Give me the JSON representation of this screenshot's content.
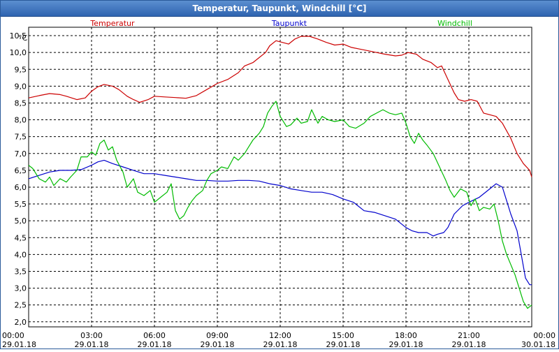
{
  "title": "Temperatur, Taupunkt, Windchill [°C]",
  "chart_data": {
    "type": "line",
    "unit": "°C",
    "y_ticks": [
      "2,0",
      "2,5",
      "3,0",
      "3,5",
      "4,0",
      "4,5",
      "5,0",
      "5,5",
      "6,0",
      "6,5",
      "7,0",
      "7,5",
      "8,0",
      "8,5",
      "9,0",
      "9,5",
      "10,0",
      "10,5"
    ],
    "ylim": [
      1.85,
      10.75
    ],
    "xlim": [
      0,
      24
    ],
    "x_ticks": [
      {
        "hour": 0,
        "time": "00:00",
        "date": "29.01.18"
      },
      {
        "hour": 3,
        "time": "03:00",
        "date": "29.01.18"
      },
      {
        "hour": 6,
        "time": "06:00",
        "date": "29.01.18"
      },
      {
        "hour": 9,
        "time": "09:00",
        "date": "29.01.18"
      },
      {
        "hour": 12,
        "time": "12:00",
        "date": "29.01.18"
      },
      {
        "hour": 15,
        "time": "15:00",
        "date": "29.01.18"
      },
      {
        "hour": 18,
        "time": "18:00",
        "date": "29.01.18"
      },
      {
        "hour": 21,
        "time": "21:00",
        "date": "29.01.18"
      },
      {
        "hour": 24,
        "time": "00:00",
        "date": "30.01.18"
      }
    ],
    "grid": true,
    "series": [
      {
        "name": "Temperatur",
        "color": "#cc0000",
        "points": [
          [
            0,
            8.65
          ],
          [
            0.5,
            8.72
          ],
          [
            1.0,
            8.78
          ],
          [
            1.5,
            8.75
          ],
          [
            1.8,
            8.7
          ],
          [
            2.3,
            8.6
          ],
          [
            2.7,
            8.65
          ],
          [
            3.0,
            8.85
          ],
          [
            3.3,
            8.98
          ],
          [
            3.6,
            9.05
          ],
          [
            4.0,
            9.0
          ],
          [
            4.3,
            8.9
          ],
          [
            4.7,
            8.7
          ],
          [
            5.0,
            8.6
          ],
          [
            5.3,
            8.52
          ],
          [
            5.7,
            8.6
          ],
          [
            6.0,
            8.7
          ],
          [
            6.5,
            8.68
          ],
          [
            7.0,
            8.66
          ],
          [
            7.5,
            8.64
          ],
          [
            8.0,
            8.72
          ],
          [
            8.5,
            8.9
          ],
          [
            9.0,
            9.08
          ],
          [
            9.5,
            9.2
          ],
          [
            10.0,
            9.4
          ],
          [
            10.3,
            9.6
          ],
          [
            10.7,
            9.7
          ],
          [
            11.0,
            9.85
          ],
          [
            11.3,
            10.0
          ],
          [
            11.5,
            10.2
          ],
          [
            11.8,
            10.35
          ],
          [
            12.1,
            10.3
          ],
          [
            12.4,
            10.25
          ],
          [
            12.7,
            10.4
          ],
          [
            13.0,
            10.48
          ],
          [
            13.4,
            10.48
          ],
          [
            13.8,
            10.4
          ],
          [
            14.2,
            10.3
          ],
          [
            14.6,
            10.22
          ],
          [
            15.0,
            10.25
          ],
          [
            15.4,
            10.15
          ],
          [
            15.8,
            10.1
          ],
          [
            16.2,
            10.05
          ],
          [
            16.6,
            10.0
          ],
          [
            17.0,
            9.95
          ],
          [
            17.5,
            9.9
          ],
          [
            17.8,
            9.92
          ],
          [
            18.1,
            10.0
          ],
          [
            18.5,
            9.95
          ],
          [
            18.8,
            9.8
          ],
          [
            19.2,
            9.7
          ],
          [
            19.5,
            9.55
          ],
          [
            19.7,
            9.6
          ],
          [
            20.0,
            9.2
          ],
          [
            20.3,
            8.8
          ],
          [
            20.5,
            8.6
          ],
          [
            20.8,
            8.55
          ],
          [
            21.1,
            8.6
          ],
          [
            21.4,
            8.55
          ],
          [
            21.7,
            8.2
          ],
          [
            22.0,
            8.15
          ],
          [
            22.3,
            8.1
          ],
          [
            22.6,
            7.9
          ],
          [
            23.0,
            7.45
          ],
          [
            23.3,
            7.0
          ],
          [
            23.6,
            6.7
          ],
          [
            23.9,
            6.5
          ],
          [
            24.0,
            6.3
          ]
        ]
      },
      {
        "name": "Taupunkt",
        "color": "#0000cc",
        "points": [
          [
            0,
            6.25
          ],
          [
            0.5,
            6.35
          ],
          [
            1.0,
            6.45
          ],
          [
            1.5,
            6.5
          ],
          [
            2.0,
            6.5
          ],
          [
            2.5,
            6.52
          ],
          [
            3.0,
            6.65
          ],
          [
            3.3,
            6.75
          ],
          [
            3.6,
            6.8
          ],
          [
            4.0,
            6.7
          ],
          [
            4.5,
            6.6
          ],
          [
            5.0,
            6.5
          ],
          [
            5.5,
            6.4
          ],
          [
            6.0,
            6.4
          ],
          [
            6.5,
            6.35
          ],
          [
            7.0,
            6.3
          ],
          [
            7.5,
            6.25
          ],
          [
            8.0,
            6.2
          ],
          [
            8.5,
            6.2
          ],
          [
            9.0,
            6.18
          ],
          [
            9.5,
            6.18
          ],
          [
            10.0,
            6.2
          ],
          [
            10.5,
            6.2
          ],
          [
            11.0,
            6.18
          ],
          [
            11.5,
            6.1
          ],
          [
            12.0,
            6.05
          ],
          [
            12.5,
            5.95
          ],
          [
            13.0,
            5.9
          ],
          [
            13.5,
            5.85
          ],
          [
            14.0,
            5.85
          ],
          [
            14.5,
            5.78
          ],
          [
            15.0,
            5.65
          ],
          [
            15.5,
            5.55
          ],
          [
            16.0,
            5.3
          ],
          [
            16.5,
            5.25
          ],
          [
            17.0,
            5.15
          ],
          [
            17.5,
            5.05
          ],
          [
            18.0,
            4.8
          ],
          [
            18.3,
            4.7
          ],
          [
            18.6,
            4.65
          ],
          [
            19.0,
            4.65
          ],
          [
            19.3,
            4.55
          ],
          [
            19.5,
            4.6
          ],
          [
            19.8,
            4.65
          ],
          [
            20.0,
            4.8
          ],
          [
            20.3,
            5.2
          ],
          [
            20.7,
            5.45
          ],
          [
            21.0,
            5.55
          ],
          [
            21.5,
            5.7
          ],
          [
            22.0,
            5.95
          ],
          [
            22.3,
            6.1
          ],
          [
            22.6,
            6.0
          ],
          [
            22.8,
            5.6
          ],
          [
            23.0,
            5.2
          ],
          [
            23.3,
            4.7
          ],
          [
            23.5,
            4.0
          ],
          [
            23.7,
            3.3
          ],
          [
            23.9,
            3.1
          ],
          [
            24.0,
            3.1
          ]
        ]
      },
      {
        "name": "Windchill",
        "color": "#00bb00",
        "points": [
          [
            0,
            6.65
          ],
          [
            0.2,
            6.55
          ],
          [
            0.5,
            6.25
          ],
          [
            0.8,
            6.15
          ],
          [
            1.0,
            6.3
          ],
          [
            1.2,
            6.05
          ],
          [
            1.5,
            6.25
          ],
          [
            1.8,
            6.15
          ],
          [
            2.0,
            6.3
          ],
          [
            2.3,
            6.5
          ],
          [
            2.5,
            6.9
          ],
          [
            2.8,
            6.9
          ],
          [
            3.0,
            7.05
          ],
          [
            3.2,
            6.95
          ],
          [
            3.4,
            7.3
          ],
          [
            3.6,
            7.4
          ],
          [
            3.8,
            7.1
          ],
          [
            4.0,
            7.2
          ],
          [
            4.2,
            6.8
          ],
          [
            4.5,
            6.45
          ],
          [
            4.7,
            6.0
          ],
          [
            5.0,
            6.25
          ],
          [
            5.2,
            5.85
          ],
          [
            5.5,
            5.75
          ],
          [
            5.8,
            5.9
          ],
          [
            6.0,
            5.55
          ],
          [
            6.3,
            5.7
          ],
          [
            6.6,
            5.85
          ],
          [
            6.8,
            6.1
          ],
          [
            7.0,
            5.3
          ],
          [
            7.2,
            5.05
          ],
          [
            7.4,
            5.15
          ],
          [
            7.6,
            5.4
          ],
          [
            7.8,
            5.6
          ],
          [
            8.0,
            5.75
          ],
          [
            8.3,
            5.9
          ],
          [
            8.5,
            6.2
          ],
          [
            8.7,
            6.4
          ],
          [
            9.0,
            6.5
          ],
          [
            9.2,
            6.6
          ],
          [
            9.5,
            6.55
          ],
          [
            9.8,
            6.9
          ],
          [
            10.0,
            6.8
          ],
          [
            10.3,
            7.0
          ],
          [
            10.5,
            7.2
          ],
          [
            10.7,
            7.4
          ],
          [
            11.0,
            7.6
          ],
          [
            11.2,
            7.8
          ],
          [
            11.4,
            8.2
          ],
          [
            11.6,
            8.4
          ],
          [
            11.8,
            8.55
          ],
          [
            12.0,
            8.1
          ],
          [
            12.3,
            7.8
          ],
          [
            12.5,
            7.85
          ],
          [
            12.8,
            8.05
          ],
          [
            13.0,
            7.9
          ],
          [
            13.3,
            7.95
          ],
          [
            13.5,
            8.3
          ],
          [
            13.8,
            7.9
          ],
          [
            14.0,
            8.1
          ],
          [
            14.3,
            8.0
          ],
          [
            14.6,
            7.95
          ],
          [
            15.0,
            8.0
          ],
          [
            15.3,
            7.8
          ],
          [
            15.6,
            7.75
          ],
          [
            16.0,
            7.9
          ],
          [
            16.3,
            8.1
          ],
          [
            16.6,
            8.2
          ],
          [
            16.9,
            8.3
          ],
          [
            17.2,
            8.2
          ],
          [
            17.5,
            8.15
          ],
          [
            17.8,
            8.2
          ],
          [
            18.0,
            7.9
          ],
          [
            18.2,
            7.5
          ],
          [
            18.4,
            7.3
          ],
          [
            18.6,
            7.6
          ],
          [
            18.8,
            7.4
          ],
          [
            19.0,
            7.25
          ],
          [
            19.3,
            7.0
          ],
          [
            19.6,
            6.6
          ],
          [
            19.9,
            6.2
          ],
          [
            20.1,
            5.9
          ],
          [
            20.3,
            5.7
          ],
          [
            20.6,
            5.95
          ],
          [
            20.9,
            5.85
          ],
          [
            21.1,
            5.45
          ],
          [
            21.3,
            5.65
          ],
          [
            21.5,
            5.3
          ],
          [
            21.7,
            5.4
          ],
          [
            22.0,
            5.35
          ],
          [
            22.2,
            5.5
          ],
          [
            22.4,
            5.0
          ],
          [
            22.6,
            4.4
          ],
          [
            22.8,
            4.0
          ],
          [
            23.0,
            3.7
          ],
          [
            23.2,
            3.4
          ],
          [
            23.4,
            3.0
          ],
          [
            23.6,
            2.6
          ],
          [
            23.8,
            2.4
          ],
          [
            24.0,
            2.5
          ]
        ]
      }
    ]
  }
}
